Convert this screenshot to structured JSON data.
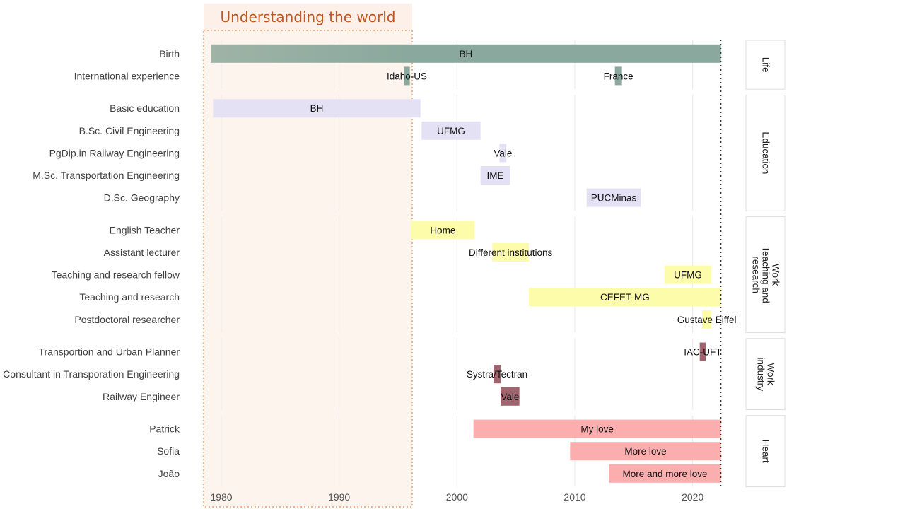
{
  "chart_data": {
    "type": "timeline",
    "highlight": {
      "title": "Understanding the world",
      "start": 1978.5,
      "end": 1996.2,
      "color": "#f4a259"
    },
    "xaxis": {
      "ticks": [
        1980,
        1990,
        2000,
        2010,
        2020
      ],
      "xlim": [
        1978.5,
        2023.5
      ]
    },
    "end_marker": 2022.4,
    "grid": true,
    "panels": [
      {
        "label": "Life",
        "rows": [
          {
            "label": "Birth",
            "bars": [
              {
                "start": 1979.1,
                "end": 2022.4,
                "text": "BH",
                "color": "#8aa89e",
                "gradient_end": 1996.2
              }
            ]
          },
          {
            "label": "International experience",
            "bars": [
              {
                "start": 1995.5,
                "end": 1996.0,
                "text": "Idaho-US",
                "color": "#8aa89e"
              },
              {
                "start": 2013.4,
                "end": 2014.0,
                "text": "France",
                "color": "#8aa89e"
              }
            ]
          }
        ]
      },
      {
        "label": "Education",
        "rows": [
          {
            "label": "Basic education",
            "bars": [
              {
                "start": 1979.3,
                "end": 1996.9,
                "text": "BH",
                "color": "#e4e1f4"
              }
            ]
          },
          {
            "label": "B.Sc. Civil Engineering",
            "bars": [
              {
                "start": 1997.0,
                "end": 2002.0,
                "text": "UFMG",
                "color": "#e4e1f4"
              }
            ]
          },
          {
            "label": "PgDip.in Railway Engineering",
            "bars": [
              {
                "start": 2003.6,
                "end": 2004.2,
                "text": "Vale",
                "color": "#e4e1f4"
              }
            ]
          },
          {
            "label": "M.Sc. Transportation Engineering",
            "bars": [
              {
                "start": 2002.0,
                "end": 2004.5,
                "text": "IME",
                "color": "#e4e1f4"
              }
            ]
          },
          {
            "label": "D.Sc. Geography",
            "bars": [
              {
                "start": 2011.0,
                "end": 2015.6,
                "text": "PUCMinas",
                "color": "#e4e1f4"
              }
            ]
          }
        ]
      },
      {
        "label": "Work\nTeaching and\nresearch",
        "rows": [
          {
            "label": "English Teacher",
            "bars": [
              {
                "start": 1996.1,
                "end": 2001.5,
                "text": "Home",
                "color": "#fdfcaa"
              }
            ]
          },
          {
            "label": "Assistant lecturer",
            "bars": [
              {
                "start": 2003.0,
                "end": 2006.1,
                "text": "Different institutions",
                "color": "#fdfcaa"
              }
            ]
          },
          {
            "label": "Teaching and research fellow",
            "bars": [
              {
                "start": 2017.6,
                "end": 2021.6,
                "text": "UFMG",
                "color": "#fdfcaa"
              }
            ]
          },
          {
            "label": "Teaching and research",
            "bars": [
              {
                "start": 2006.1,
                "end": 2022.4,
                "text": "CEFET-MG",
                "color": "#fdfcaa"
              }
            ]
          },
          {
            "label": "Postdoctoral researcher",
            "bars": [
              {
                "start": 2020.8,
                "end": 2021.6,
                "text": "Gustave Eiffel",
                "color": "#fdfcaa"
              }
            ]
          }
        ]
      },
      {
        "label": "Work\nindustry",
        "rows": [
          {
            "label": "Transportion and Urban Planner",
            "bars": [
              {
                "start": 2020.6,
                "end": 2021.1,
                "text": "IAC-UFT",
                "color": "#a0646e"
              }
            ]
          },
          {
            "label": "Consultant in Transporation Engineering",
            "bars": [
              {
                "start": 2003.1,
                "end": 2003.7,
                "text": "Systra/Tectran",
                "color": "#a0646e"
              }
            ]
          },
          {
            "label": "Railway Engineer",
            "bars": [
              {
                "start": 2003.7,
                "end": 2005.3,
                "text": "Vale",
                "color": "#a0646e"
              }
            ]
          }
        ]
      },
      {
        "label": "Heart",
        "rows": [
          {
            "label": "Patrick",
            "bars": [
              {
                "start": 2001.4,
                "end": 2022.4,
                "text": "My love",
                "color": "#fcaeae"
              }
            ]
          },
          {
            "label": "Sofia",
            "bars": [
              {
                "start": 2009.6,
                "end": 2022.4,
                "text": "More love",
                "color": "#fcaeae"
              }
            ]
          },
          {
            "label": "João",
            "bars": [
              {
                "start": 2012.9,
                "end": 2022.4,
                "text": "More and more love",
                "color": "#fcaeae"
              }
            ]
          }
        ]
      }
    ]
  }
}
